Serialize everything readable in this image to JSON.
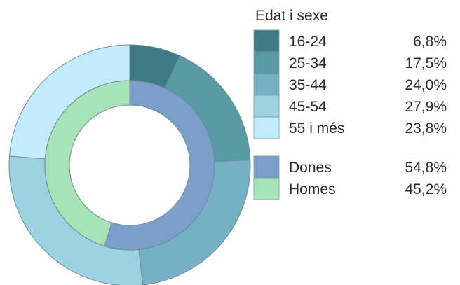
{
  "chart_data": {
    "type": "donut",
    "legend_title": "Edat i sexe",
    "legend_position": "right",
    "rings": [
      {
        "ring": "outer",
        "series": [
          {
            "label": "16-24",
            "value": 6.8,
            "value_text": "6,8%",
            "color": "#3f7a87"
          },
          {
            "label": "25-34",
            "value": 17.5,
            "value_text": "17,5%",
            "color": "#589aa5"
          },
          {
            "label": "35-44",
            "value": 24.0,
            "value_text": "24,0%",
            "color": "#74b1c2"
          },
          {
            "label": "45-54",
            "value": 27.9,
            "value_text": "27,9%",
            "color": "#9dd2e2"
          },
          {
            "label": "55 i més",
            "value": 23.8,
            "value_text": "23,8%",
            "color": "#c4ebfb"
          }
        ]
      },
      {
        "ring": "inner",
        "series": [
          {
            "label": "Dones",
            "value": 54.8,
            "value_text": "54,8%",
            "color": "#7b9fc9"
          },
          {
            "label": "Homes",
            "value": 45.2,
            "value_text": "45,2%",
            "color": "#a6e3b6"
          }
        ]
      }
    ]
  }
}
